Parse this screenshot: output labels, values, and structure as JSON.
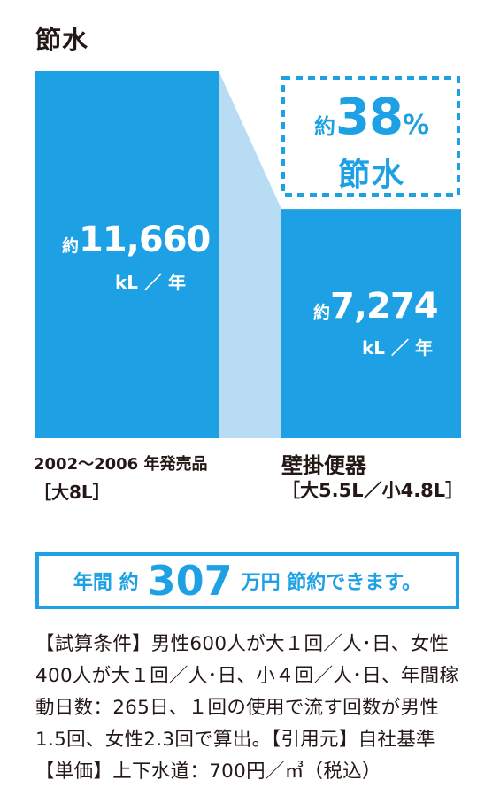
{
  "title": "節水",
  "colors": {
    "bar": "#1da1e4",
    "connector": "#b7dcf4",
    "accent": "#1da1e4"
  },
  "chart_data": {
    "type": "bar",
    "title": "節水",
    "categories": [
      "2002〜2006 年発売品",
      "壁掛便器"
    ],
    "values": [
      11660,
      7274
    ],
    "unit": "kL ／ 年",
    "ylim": [
      0,
      11660
    ],
    "grid": false,
    "legend": "none"
  },
  "bars": [
    {
      "prefix": "約",
      "value": "11,660",
      "unit": "kL ／ 年",
      "label": "2002〜2006 年発売品",
      "size": "［大8L］"
    },
    {
      "prefix": "約",
      "value": "7,274",
      "unit": "kL ／ 年",
      "label": "壁掛便器",
      "size": "［大5.5L／小4.8L］"
    }
  ],
  "saving": {
    "prefix": "約",
    "value": "38",
    "percent": "%",
    "label": "節水"
  },
  "banner": {
    "pre": "年間 約",
    "value": "307",
    "post": "万円 節約できます。"
  },
  "note": "【試算条件】男性600人が大１回／人･日、女性400人が大１回／人･日、小４回／人･日、年間稼動日数：265日、１回の使用で流す回数が男性 1.5回、女性2.3回で算出。【引用元】自社基準【単価】上下水道：700円／㎥（税込）"
}
